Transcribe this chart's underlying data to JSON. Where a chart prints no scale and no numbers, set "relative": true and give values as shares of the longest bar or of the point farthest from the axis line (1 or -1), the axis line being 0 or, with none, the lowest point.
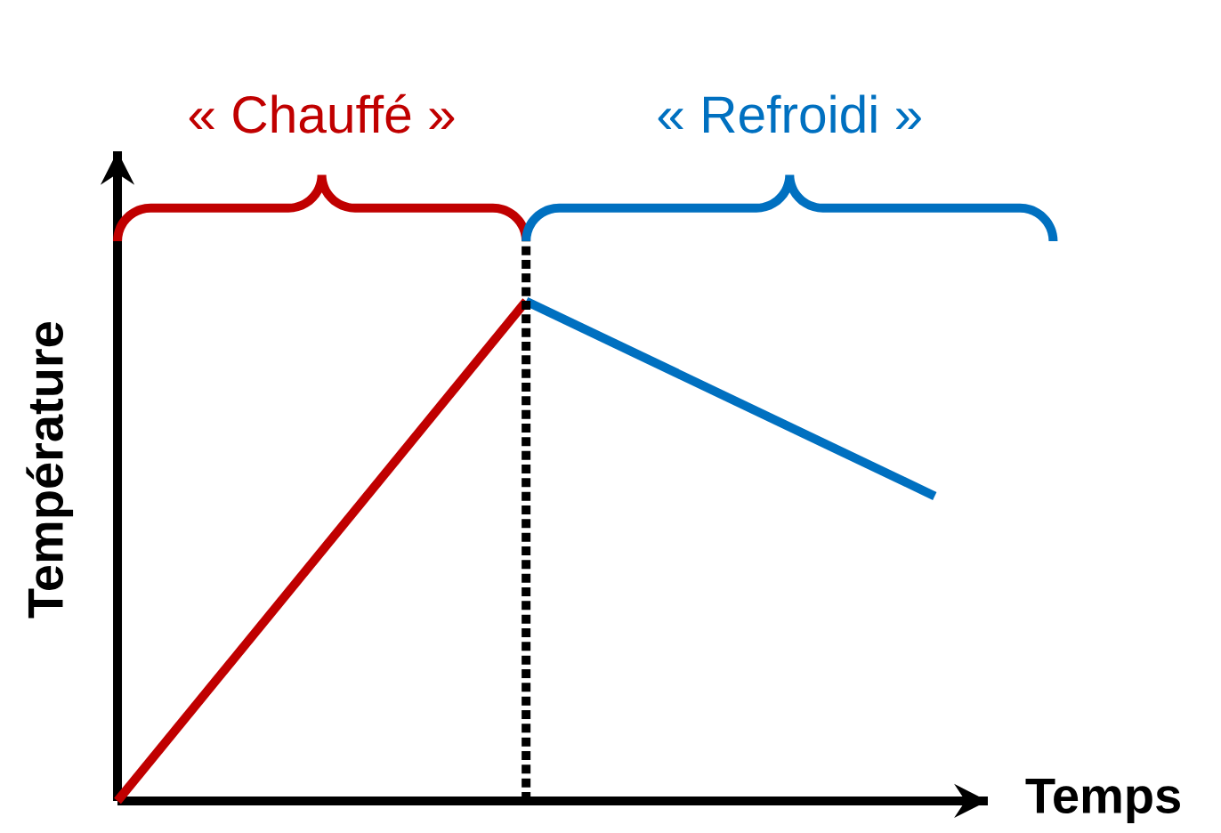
{
  "chart_data": {
    "type": "line",
    "relative": true,
    "categories": [
      null,
      null,
      null
    ],
    "series": [
      {
        "color": "#c00000",
        "values": [
          0,
          1,
          null
        ]
      },
      {
        "color": "#0070c0",
        "values": [
          null,
          1,
          0.61
        ]
      }
    ],
    "xlabel": "Temps",
    "ylabel": "Température",
    "annotations": [
      "« Chauffé »",
      "« Refroidi »"
    ],
    "marker": "none",
    "line_style": "solid"
  }
}
